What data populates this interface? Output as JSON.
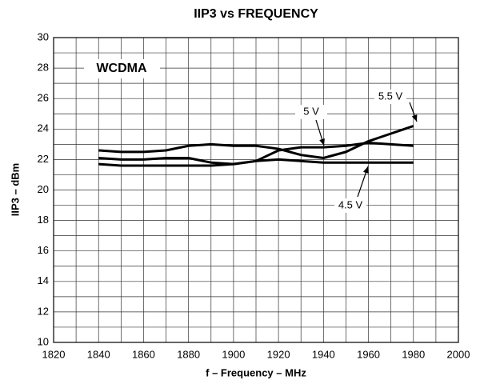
{
  "chart_data": {
    "type": "line",
    "title": "IIP3 vs FREQUENCY",
    "x_label": "f – Frequency – MHz",
    "y_label": "IIP3 – dBm",
    "annotation": "WCDMA",
    "x": [
      1840,
      1850,
      1860,
      1870,
      1880,
      1890,
      1900,
      1910,
      1920,
      1930,
      1940,
      1950,
      1960,
      1970,
      1980
    ],
    "series": [
      {
        "name": "5.5 V",
        "color": "#000000",
        "values": [
          22.6,
          22.5,
          22.5,
          22.6,
          22.9,
          23.0,
          22.9,
          22.9,
          22.7,
          22.3,
          22.1,
          22.5,
          23.2,
          23.7,
          24.2
        ]
      },
      {
        "name": "5 V",
        "color": "#000000",
        "values": [
          22.1,
          22.0,
          22.0,
          22.1,
          22.1,
          21.8,
          21.7,
          21.9,
          22.6,
          22.8,
          22.8,
          22.9,
          23.1,
          23.0,
          22.9
        ]
      },
      {
        "name": "4.5 V",
        "color": "#000000",
        "values": [
          21.7,
          21.6,
          21.6,
          21.6,
          21.6,
          21.6,
          21.7,
          21.9,
          22.0,
          21.9,
          21.8,
          21.8,
          21.8,
          21.8,
          21.8
        ]
      }
    ],
    "xlim": [
      1820,
      2000
    ],
    "xticks": [
      1820,
      1840,
      1860,
      1880,
      1900,
      1920,
      1940,
      1960,
      1980,
      2000
    ],
    "xminor": [
      1830,
      1850,
      1870,
      1890,
      1910,
      1930,
      1950,
      1970,
      1990
    ],
    "ylim": [
      10,
      30
    ],
    "yticks": [
      10,
      12,
      14,
      16,
      18,
      20,
      22,
      24,
      26,
      28,
      30
    ],
    "yminor": [
      11,
      13,
      15,
      17,
      19,
      21,
      23,
      25,
      27,
      29
    ],
    "grid": true
  }
}
